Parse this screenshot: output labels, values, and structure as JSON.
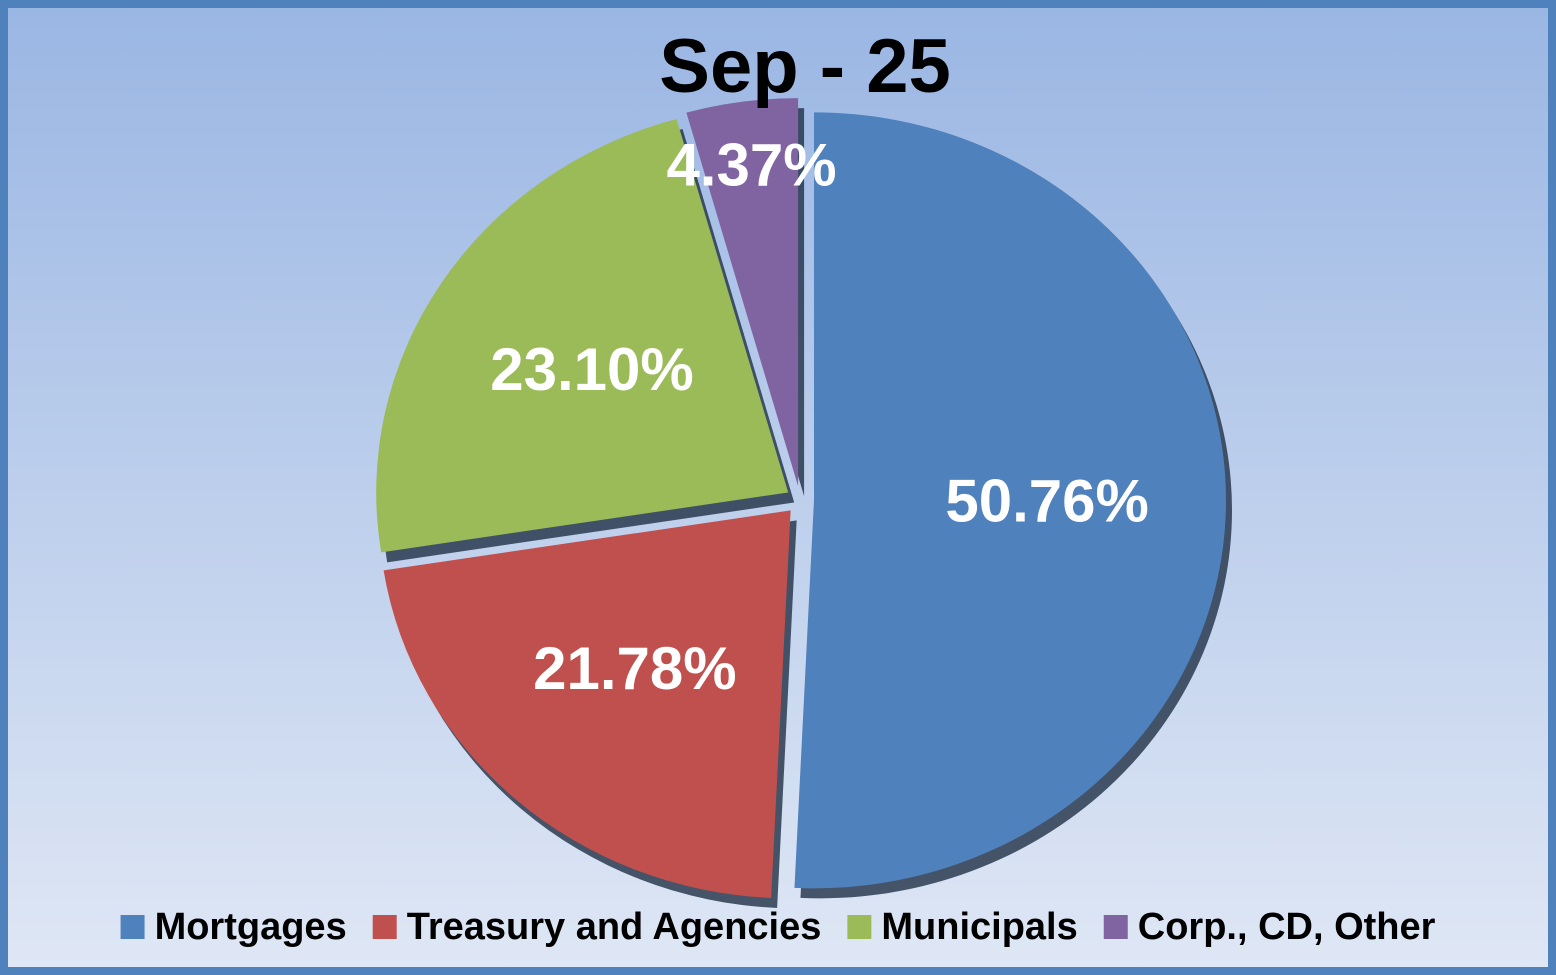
{
  "chart_data": {
    "type": "pie",
    "title": "Sep - 25",
    "categories": [
      "Mortgages",
      "Treasury and Agencies",
      "Municipals",
      "Corp., CD, Other"
    ],
    "values": [
      50.76,
      21.78,
      23.1,
      4.37
    ],
    "value_labels": [
      "50.76%",
      "21.78%",
      "23.10%",
      "4.37%"
    ],
    "colors": [
      "#4f81bd",
      "#c0504d",
      "#9bbb59",
      "#8064a2"
    ],
    "legend": "bottom"
  }
}
